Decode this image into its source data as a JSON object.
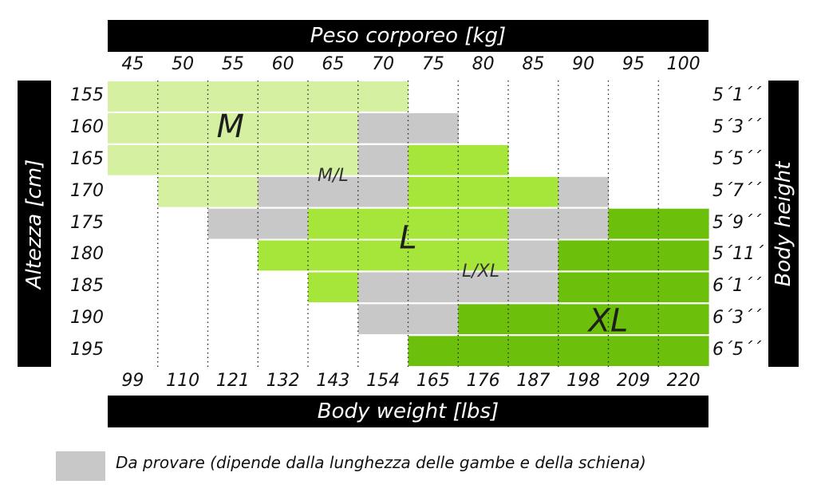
{
  "chart_data": {
    "type": "heatmap",
    "title_top": "Peso corporeo [kg]",
    "title_bottom": "Body weight [lbs]",
    "title_left": "Altezza [cm]",
    "title_right": "Body height",
    "weights_kg": [
      "45",
      "50",
      "55",
      "60",
      "65",
      "70",
      "75",
      "80",
      "85",
      "90",
      "95",
      "100"
    ],
    "weights_lbs": [
      "99",
      "110",
      "121",
      "132",
      "143",
      "154",
      "165",
      "176",
      "187",
      "198",
      "209",
      "220"
    ],
    "heights_cm": [
      "155",
      "160",
      "165",
      "170",
      "175",
      "180",
      "185",
      "190",
      "195"
    ],
    "heights_ft": [
      "5´1´´",
      "5´3´´",
      "5´5´´",
      "5´7´´",
      "5´9´´",
      "5´11´´",
      "6´1´´",
      "6´3´´",
      "6´5´´"
    ],
    "size_colors": {
      "M": "#d4f0a0",
      "ML": "#c8c8c8",
      "L": "#a6e63a",
      "LXL": "#c8c8c8",
      "XL": "#6cbf0a"
    },
    "cells": [
      [
        "M",
        "M",
        "M",
        "M",
        "M",
        "M",
        "",
        "",
        "",
        "",
        "",
        ""
      ],
      [
        "M",
        "M",
        "M",
        "M",
        "M",
        "ML",
        "ML",
        "",
        "",
        "",
        "",
        ""
      ],
      [
        "M",
        "M",
        "M",
        "M",
        "M",
        "ML",
        "L",
        "L",
        "",
        "",
        "",
        ""
      ],
      [
        "",
        "M",
        "M",
        "ML",
        "ML",
        "ML",
        "L",
        "L",
        "L",
        "LXL",
        "",
        ""
      ],
      [
        "",
        "",
        "ML",
        "ML",
        "L",
        "L",
        "L",
        "L",
        "LXL",
        "LXL",
        "XL",
        "XL"
      ],
      [
        "",
        "",
        "",
        "L",
        "L",
        "L",
        "L",
        "L",
        "LXL",
        "XL",
        "XL",
        "XL"
      ],
      [
        "",
        "",
        "",
        "",
        "L",
        "LXL",
        "LXL",
        "LXL",
        "LXL",
        "XL",
        "XL",
        "XL"
      ],
      [
        "",
        "",
        "",
        "",
        "",
        "LXL",
        "LXL",
        "XL",
        "XL",
        "XL",
        "XL",
        "XL"
      ],
      [
        "",
        "",
        "",
        "",
        "",
        "",
        "XL",
        "XL",
        "XL",
        "XL",
        "XL",
        "XL"
      ]
    ],
    "zone_labels": [
      {
        "text": "M",
        "row": 1.45,
        "col": 2.45,
        "size": "big"
      },
      {
        "text": "M/L",
        "row": 3.0,
        "col": 4.5,
        "size": "small"
      },
      {
        "text": "L",
        "row": 4.95,
        "col": 6.0,
        "size": "big"
      },
      {
        "text": "L/XL",
        "row": 6.0,
        "col": 7.45,
        "size": "small"
      },
      {
        "text": "XL",
        "row": 7.55,
        "col": 10.0,
        "size": "big"
      }
    ],
    "legend": {
      "color": "#c8c8c8",
      "text": "Da provare (dipende dalla lunghezza delle gambe e della schiena)"
    }
  }
}
